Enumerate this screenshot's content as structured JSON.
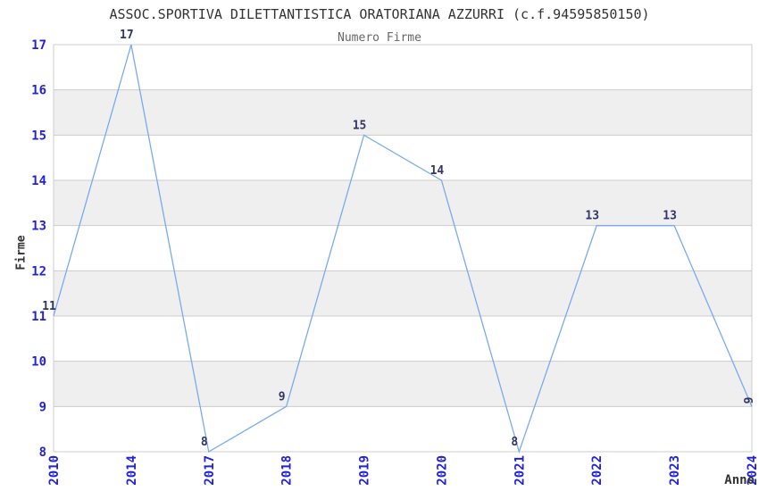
{
  "chart_data": {
    "type": "line",
    "title": "ASSOC.SPORTIVA DILETTANTISTICA ORATORIANA AZZURRI (c.f.94595850150)",
    "subtitle": "Numero Firme",
    "xlabel": "Anno",
    "ylabel": "Firme",
    "categories": [
      "2010",
      "2014",
      "2017",
      "2018",
      "2019",
      "2020",
      "2021",
      "2022",
      "2023",
      "2024"
    ],
    "values": [
      11,
      17,
      8,
      9,
      15,
      14,
      8,
      13,
      13,
      9
    ],
    "ylim": [
      8,
      17
    ],
    "yticks": [
      8,
      9,
      10,
      11,
      12,
      13,
      14,
      15,
      16,
      17
    ],
    "grid": true,
    "legend": "none",
    "point_labels_shown": true,
    "last_point_label_rotated": true,
    "band_ranges": [
      [
        9,
        10
      ],
      [
        11,
        12
      ],
      [
        13,
        14
      ],
      [
        15,
        16
      ]
    ],
    "colors": {
      "line": "#79aaec",
      "tick_labels": "#2222dd",
      "point_labels": "#333366",
      "band": "#efefef",
      "gridline": "#cccccc",
      "title": "#333333",
      "subtitle": "#666666",
      "axis_titles": "#333333",
      "background": "#ffffff"
    }
  }
}
